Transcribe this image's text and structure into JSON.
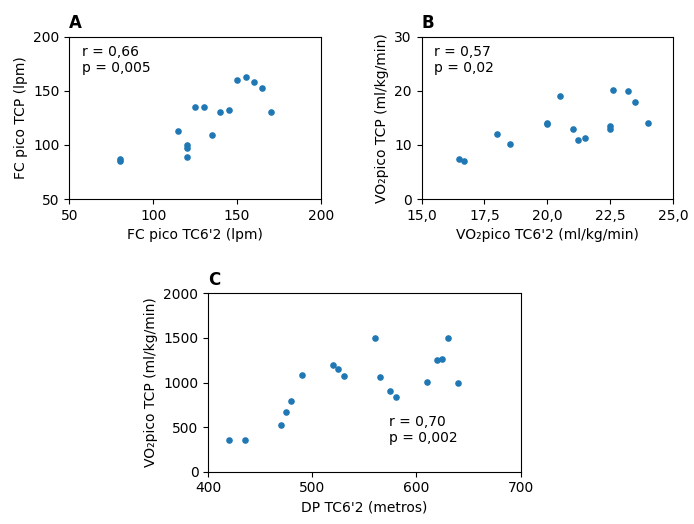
{
  "chart_data": [
    {
      "type": "scatter",
      "title": "A",
      "x": [
        80,
        80,
        115,
        120,
        120,
        120,
        125,
        130,
        135,
        140,
        145,
        150,
        155,
        160,
        165,
        170
      ],
      "y": [
        85,
        87,
        113,
        100,
        97,
        89,
        135,
        135,
        109,
        130,
        132,
        160,
        163,
        158,
        153,
        130
      ],
      "xlabel": "FC pico TC6'2 (lpm)",
      "ylabel": "FC pico TCP (lpm)",
      "xlim": [
        50,
        200
      ],
      "ylim": [
        50,
        200
      ],
      "xticks": [
        50,
        100,
        150,
        200
      ],
      "yticks": [
        50,
        100,
        150,
        200
      ],
      "annotation": "r = 0,66\np = 0,005"
    },
    {
      "type": "scatter",
      "title": "B",
      "x": [
        16.5,
        16.7,
        18.0,
        18.5,
        20.0,
        20.0,
        20.5,
        21.0,
        21.2,
        21.5,
        22.5,
        22.5,
        22.6,
        23.2,
        23.5,
        24.0
      ],
      "y": [
        7.5,
        7.0,
        12.0,
        10.2,
        14.0,
        13.8,
        19.0,
        13.0,
        11.0,
        11.2,
        13.0,
        13.5,
        20.2,
        20.0,
        18.0,
        14.0
      ],
      "xlabel": "VO₂pico TC6'2 (ml/kg/min)",
      "ylabel": "VO₂pico TCP (ml/kg/min)",
      "xlim": [
        15.0,
        25.0
      ],
      "ylim": [
        0,
        30
      ],
      "xticks": [
        {
          "value": 15.0,
          "label": "15,0"
        },
        {
          "value": 17.5,
          "label": "17,5"
        },
        {
          "value": 20.0,
          "label": "20,0"
        },
        {
          "value": 22.5,
          "label": "22,5"
        },
        {
          "value": 25.0,
          "label": "25,0"
        }
      ],
      "yticks": [
        0,
        10,
        20,
        30
      ],
      "annotation": "r = 0,57\np = 0,02"
    },
    {
      "type": "scatter",
      "title": "C",
      "x": [
        420,
        435,
        470,
        475,
        480,
        490,
        520,
        525,
        530,
        560,
        565,
        575,
        580,
        610,
        620,
        625,
        630,
        640
      ],
      "y": [
        360,
        350,
        520,
        670,
        790,
        1080,
        1200,
        1150,
        1070,
        1500,
        1060,
        900,
        840,
        1010,
        1250,
        1260,
        1500,
        1000
      ],
      "xlabel": "DP TC6'2 (metros)",
      "ylabel": "VO₂pico TCP (ml/kg/min)",
      "xlim": [
        400,
        700
      ],
      "ylim": [
        0,
        2000
      ],
      "xticks": [
        400,
        500,
        600,
        700
      ],
      "yticks": [
        0,
        500,
        1000,
        1500,
        2000
      ],
      "annotation": "r = 0,70\np = 0,002"
    }
  ]
}
